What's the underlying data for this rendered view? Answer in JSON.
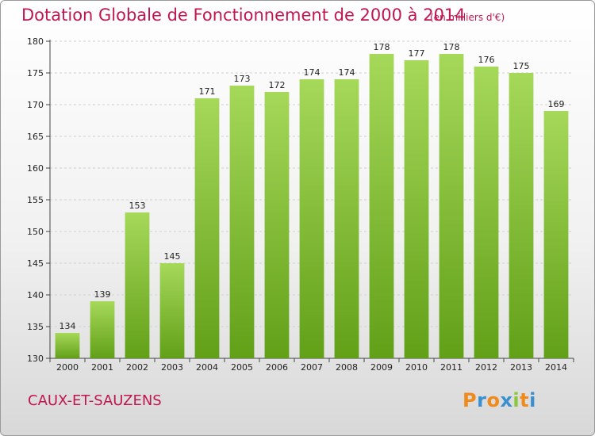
{
  "header": {
    "title": "Dotation Globale de Fonctionnement de 2000 à 2014",
    "unit": "(en milliers d'€)"
  },
  "footer": {
    "commune": "CAUX-ET-SAUZENS",
    "logo_text": "Proxiti"
  },
  "colors": {
    "title": "#c0164f",
    "bar_top": "#a6d85a",
    "bar_bottom": "#62a018",
    "grid": "#d0d0d0",
    "logo_letters": [
      "#f08a1c",
      "#3a8fd0",
      "#f08a1c",
      "#3a8fd0",
      "#8ac73d",
      "#f08a1c",
      "#3a8fd0"
    ]
  },
  "chart_data": {
    "type": "bar",
    "title": "Dotation Globale de Fonctionnement de 2000 à 2014",
    "subtitle": "(en milliers d'€)",
    "xlabel": "",
    "ylabel": "",
    "categories": [
      "2000",
      "2001",
      "2002",
      "2003",
      "2004",
      "2005",
      "2006",
      "2007",
      "2008",
      "2009",
      "2010",
      "2011",
      "2012",
      "2013",
      "2014"
    ],
    "values": [
      134,
      139,
      153,
      145,
      171,
      173,
      172,
      174,
      174,
      178,
      177,
      178,
      176,
      175,
      169
    ],
    "ylim": [
      130,
      180
    ],
    "yticks": [
      130,
      135,
      140,
      145,
      150,
      155,
      160,
      165,
      170,
      175,
      180
    ],
    "grid": true,
    "data_labels": true
  }
}
